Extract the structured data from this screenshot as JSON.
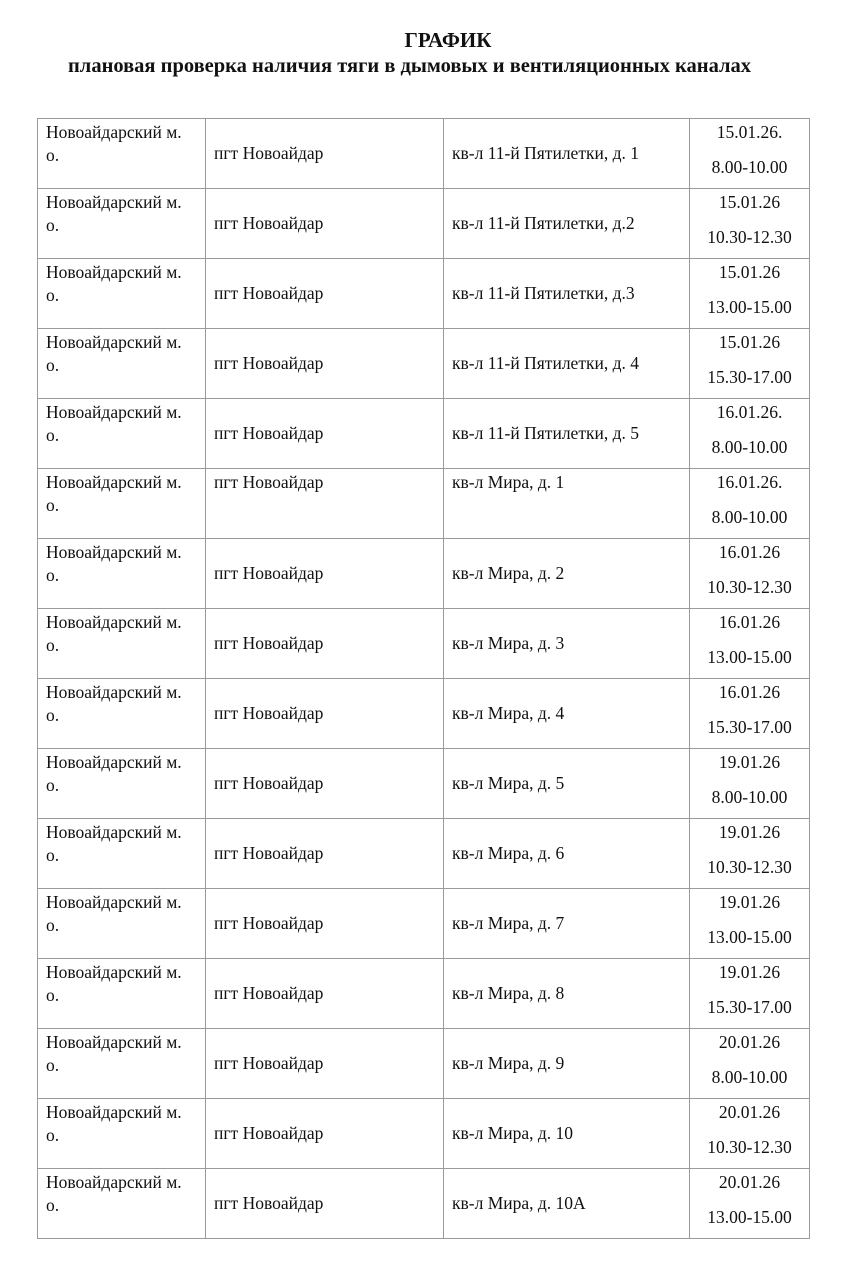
{
  "document": {
    "title": "ГРАФИК",
    "subtitle": "плановая проверка наличия тяги в дымовых и вентиляционных каналах"
  },
  "table": {
    "rows": [
      {
        "district": "Новоайдарский м. о.",
        "town": "пгт Новоайдар",
        "address": "кв-л 11-й Пятилетки, д. 1",
        "date": "15.01.26.",
        "time": "8.00-10.00"
      },
      {
        "district": "Новоайдарский м. о.",
        "town": "пгт Новоайдар",
        "address": "кв-л 11-й Пятилетки, д.2",
        "date": "15.01.26",
        "time": "10.30-12.30"
      },
      {
        "district": "Новоайдарский м. о.",
        "town": "пгт Новоайдар",
        "address": "кв-л 11-й Пятилетки, д.3",
        "date": "15.01.26",
        "time": "13.00-15.00"
      },
      {
        "district": "Новоайдарский м. о.",
        "town": "пгт Новоайдар",
        "address": "кв-л 11-й Пятилетки, д. 4",
        "date": "15.01.26",
        "time": "15.30-17.00"
      },
      {
        "district": "Новоайдарский м. о.",
        "town": "пгт Новоайдар",
        "address": "кв-л 11-й Пятилетки, д. 5",
        "date": "16.01.26.",
        "time": "8.00-10.00"
      },
      {
        "district": "Новоайдарский м. о.",
        "town": "пгт Новоайдар",
        "address": "кв-л Мира, д. 1",
        "date": "16.01.26.",
        "time": "8.00-10.00",
        "top": true
      },
      {
        "district": "Новоайдарский м. о.",
        "town": "пгт Новоайдар",
        "address": "кв-л Мира, д. 2",
        "date": "16.01.26",
        "time": "10.30-12.30"
      },
      {
        "district": "Новоайдарский м. о.",
        "town": "пгт Новоайдар",
        "address": "кв-л Мира, д. 3",
        "date": "16.01.26",
        "time": "13.00-15.00"
      },
      {
        "district": "Новоайдарский м. о.",
        "town": "пгт Новоайдар",
        "address": "кв-л Мира, д. 4",
        "date": "16.01.26",
        "time": "15.30-17.00"
      },
      {
        "district": "Новоайдарский м. о.",
        "town": "пгт Новоайдар",
        "address": "кв-л Мира, д. 5",
        "date": "19.01.26",
        "time": "8.00-10.00"
      },
      {
        "district": "Новоайдарский м. о.",
        "town": "пгт Новоайдар",
        "address": "кв-л Мира, д. 6",
        "date": "19.01.26",
        "time": "10.30-12.30"
      },
      {
        "district": "Новоайдарский м. о.",
        "town": "пгт Новоайдар",
        "address": "кв-л Мира, д. 7",
        "date": "19.01.26",
        "time": "13.00-15.00"
      },
      {
        "district": "Новоайдарский м. о.",
        "town": "пгт Новоайдар",
        "address": "кв-л Мира, д. 8",
        "date": "19.01.26",
        "time": "15.30-17.00"
      },
      {
        "district": "Новоайдарский м. о.",
        "town": "пгт Новоайдар",
        "address": "кв-л Мира, д. 9",
        "date": "20.01.26",
        "time": "8.00-10.00"
      },
      {
        "district": "Новоайдарский м. о.",
        "town": "пгт Новоайдар",
        "address": "кв-л Мира, д. 10",
        "date": "20.01.26",
        "time": "10.30-12.30"
      },
      {
        "district": "Новоайдарский м. о.",
        "town": "пгт Новоайдар",
        "address": "кв-л Мира, д. 10А",
        "date": "20.01.26",
        "time": "13.00-15.00"
      }
    ]
  }
}
